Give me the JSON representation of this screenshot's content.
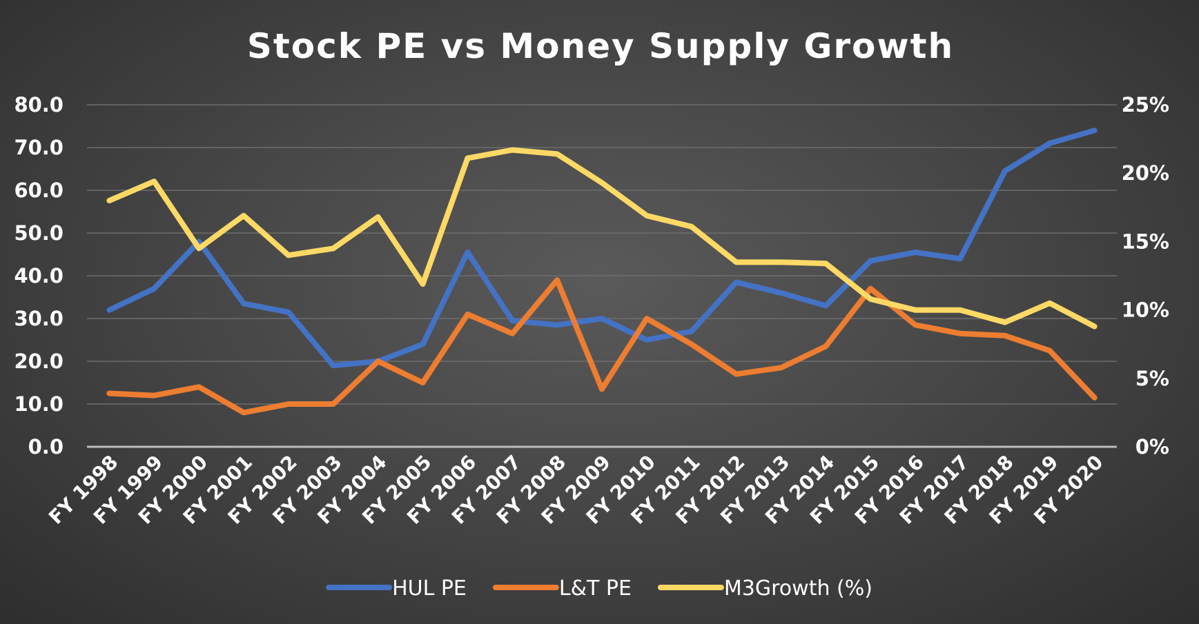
{
  "chart_data": {
    "type": "line",
    "title": "Stock PE vs Money Supply Growth",
    "categories": [
      "FY 1998",
      "FY 1999",
      "FY 2000",
      "FY 2001",
      "FY 2002",
      "FY 2003",
      "FY 2004",
      "FY 2005",
      "FY 2006",
      "FY 2007",
      "FY 2008",
      "FY 2009",
      "FY 2010",
      "FY 2011",
      "FY 2012",
      "FY 2013",
      "FY 2014",
      "FY 2015",
      "FY 2016",
      "FY 2017",
      "FY 2018",
      "FY 2019",
      "FY 2020"
    ],
    "y_left": {
      "ylim": [
        0,
        80
      ],
      "ticks": [
        "0.0",
        "10.0",
        "20.0",
        "30.0",
        "40.0",
        "50.0",
        "60.0",
        "70.0",
        "80.0"
      ]
    },
    "y_right": {
      "ylim": [
        0,
        25
      ],
      "ticks": [
        "0%",
        "5%",
        "10%",
        "15%",
        "20%",
        "25%"
      ]
    },
    "grid": true,
    "legend_position": "bottom",
    "series": [
      {
        "name": "HUL PE",
        "axis": "left",
        "color": "#4472C4",
        "values": [
          32.0,
          37.0,
          48.0,
          33.5,
          31.5,
          19.0,
          20.0,
          24.0,
          45.5,
          29.5,
          28.5,
          30.0,
          25.0,
          27.0,
          38.5,
          36.0,
          33.0,
          43.5,
          45.5,
          44.0,
          64.5,
          71.0,
          74.0
        ]
      },
      {
        "name": "L&T PE",
        "axis": "left",
        "color": "#ED7D31",
        "values": [
          12.5,
          12.0,
          14.0,
          8.0,
          10.0,
          10.0,
          20.0,
          15.0,
          31.0,
          26.5,
          39.0,
          13.5,
          30.0,
          24.0,
          17.0,
          18.5,
          23.5,
          37.0,
          28.5,
          26.5,
          26.0,
          22.5,
          11.5
        ]
      },
      {
        "name": "M3Growth (%)",
        "axis": "right",
        "color": "#FFD965",
        "values": [
          18.0,
          19.4,
          14.5,
          16.9,
          14.0,
          14.5,
          16.8,
          11.9,
          21.1,
          21.7,
          21.4,
          19.3,
          16.9,
          16.1,
          13.5,
          13.5,
          13.4,
          10.8,
          10.0,
          10.0,
          9.1,
          10.5,
          8.8
        ]
      }
    ]
  }
}
